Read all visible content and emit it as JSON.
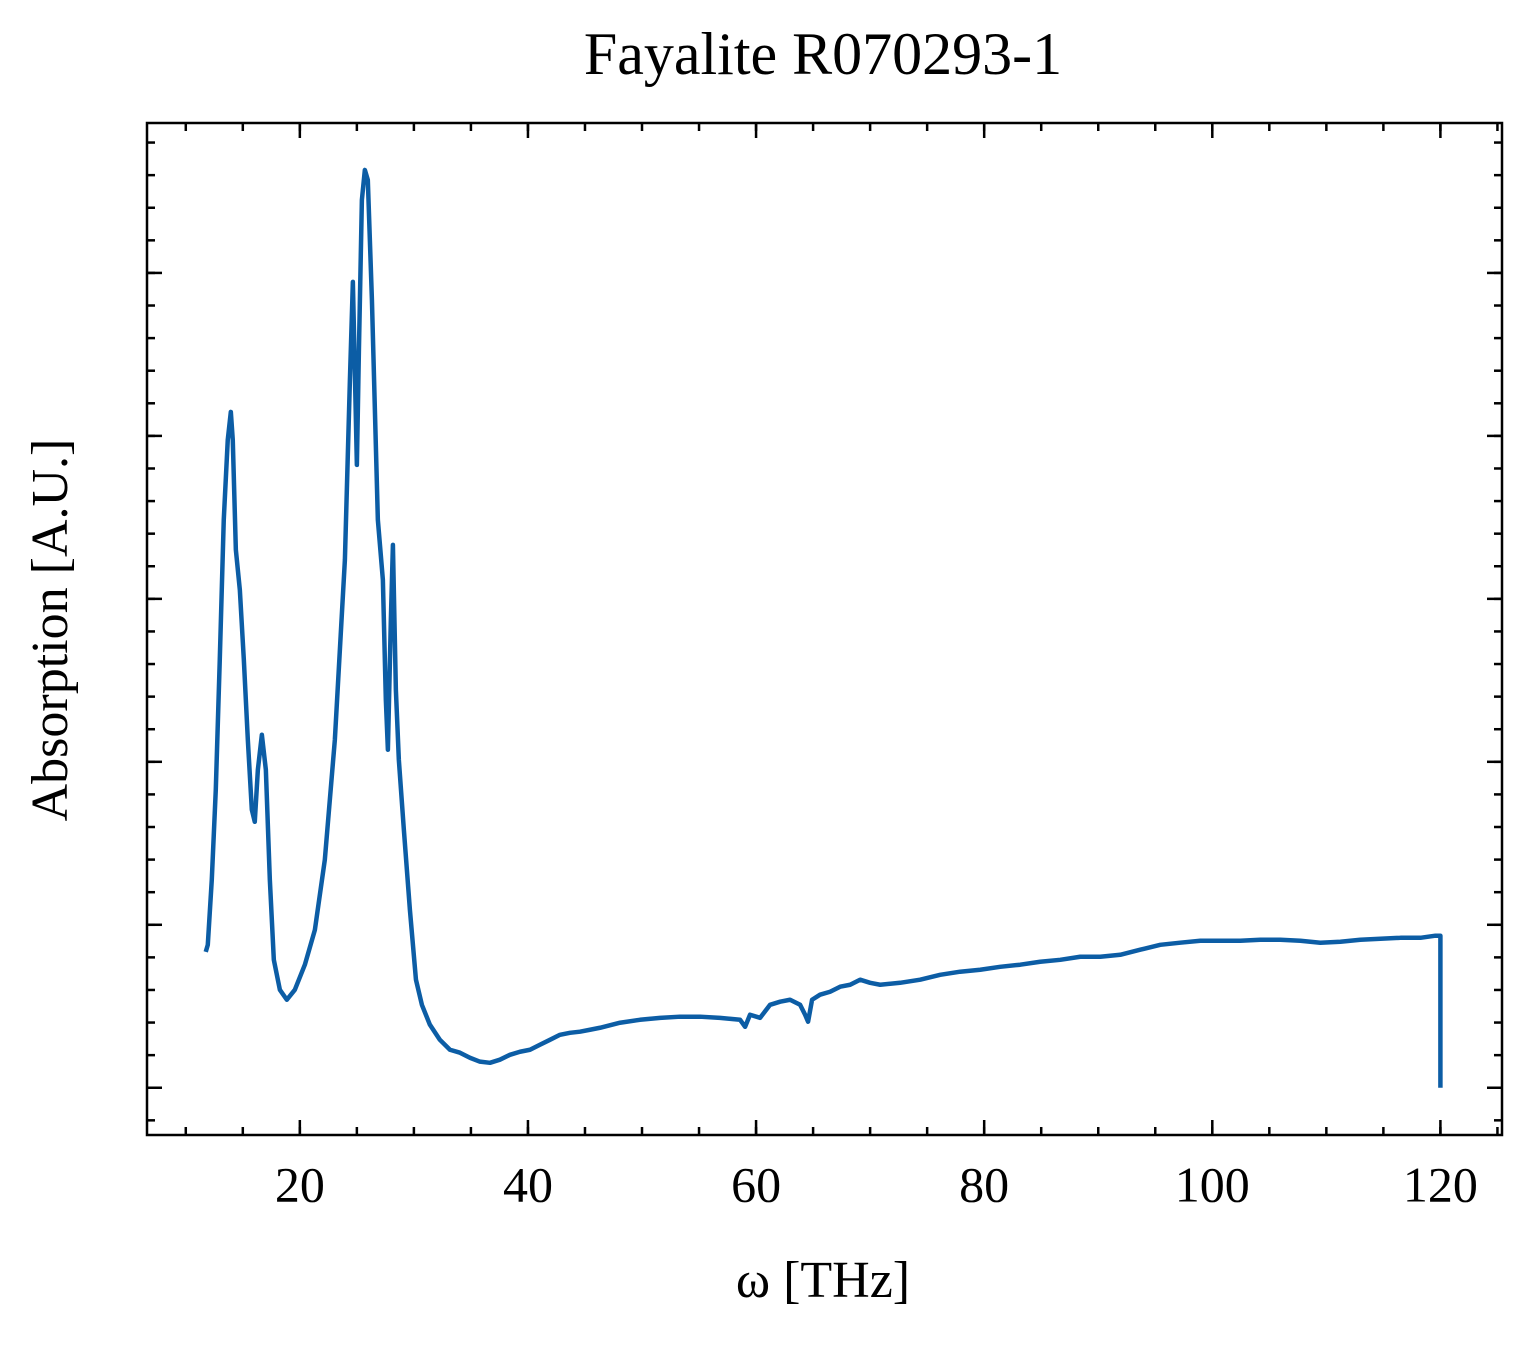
{
  "chart_data": {
    "type": "line",
    "title": "Fayalite R070293-1",
    "x_label": "ω [THz]",
    "y_label": "Absorption [A.U.]",
    "xlim": [
      6.6,
      125.4
    ],
    "ylim": [
      -0.29,
      5.92
    ],
    "xticks": [
      20,
      40,
      60,
      80,
      100,
      120
    ],
    "yticks": [
      0,
      1,
      2,
      3,
      4,
      5
    ],
    "series": [
      {
        "color": "#0c5da5",
        "x": [
          11.75,
          11.93,
          12.28,
          12.63,
          12.98,
          13.33,
          13.68,
          13.95,
          14.12,
          14.39,
          14.74,
          15.09,
          15.44,
          15.79,
          16.05,
          16.32,
          16.67,
          17.02,
          17.37,
          17.72,
          18.25,
          18.86,
          19.56,
          20.44,
          21.32,
          22.19,
          23.07,
          23.95,
          24.39,
          24.65,
          24.82,
          25.0,
          25.18,
          25.44,
          25.7,
          25.96,
          26.32,
          26.84,
          27.28,
          27.54,
          27.72,
          27.98,
          28.16,
          28.42,
          28.68,
          29.12,
          29.65,
          30.18,
          30.7,
          31.4,
          32.28,
          33.16,
          34.04,
          34.91,
          35.79,
          36.67,
          37.54,
          38.42,
          39.3,
          40.18,
          41.05,
          41.93,
          42.81,
          43.68,
          44.56,
          45.44,
          46.32,
          48.07,
          49.82,
          51.58,
          53.33,
          55.09,
          56.84,
          58.6,
          59.04,
          59.47,
          60.35,
          61.23,
          62.11,
          62.98,
          63.86,
          64.3,
          64.56,
          64.91,
          65.61,
          66.49,
          67.37,
          68.25,
          69.12,
          70.0,
          70.88,
          72.63,
          74.39,
          76.14,
          77.89,
          79.65,
          81.4,
          83.16,
          84.91,
          86.67,
          88.42,
          90.18,
          91.93,
          93.68,
          95.44,
          97.19,
          98.95,
          100.7,
          102.46,
          104.21,
          105.96,
          107.72,
          109.47,
          111.23,
          112.98,
          114.74,
          116.49,
          118.25,
          119.56,
          120.0,
          120.0
        ],
        "values": [
          0.834,
          0.877,
          1.276,
          1.828,
          2.626,
          3.485,
          3.975,
          4.147,
          3.975,
          3.301,
          3.055,
          2.626,
          2.135,
          1.706,
          1.632,
          1.951,
          2.166,
          1.951,
          1.276,
          0.785,
          0.601,
          0.54,
          0.601,
          0.755,
          0.969,
          1.399,
          2.135,
          3.239,
          4.344,
          4.945,
          4.405,
          3.822,
          4.528,
          5.448,
          5.632,
          5.571,
          4.834,
          3.485,
          3.117,
          2.38,
          2.074,
          2.871,
          3.331,
          2.442,
          2.012,
          1.583,
          1.092,
          0.663,
          0.509,
          0.387,
          0.294,
          0.233,
          0.215,
          0.184,
          0.16,
          0.153,
          0.172,
          0.202,
          0.221,
          0.233,
          0.264,
          0.294,
          0.325,
          0.337,
          0.344,
          0.356,
          0.368,
          0.399,
          0.417,
          0.429,
          0.436,
          0.436,
          0.429,
          0.417,
          0.374,
          0.448,
          0.429,
          0.509,
          0.528,
          0.54,
          0.509,
          0.448,
          0.405,
          0.54,
          0.571,
          0.589,
          0.62,
          0.632,
          0.663,
          0.644,
          0.632,
          0.644,
          0.663,
          0.693,
          0.712,
          0.724,
          0.742,
          0.755,
          0.773,
          0.785,
          0.804,
          0.804,
          0.816,
          0.847,
          0.877,
          0.89,
          0.902,
          0.902,
          0.902,
          0.908,
          0.908,
          0.902,
          0.89,
          0.896,
          0.908,
          0.914,
          0.92,
          0.92,
          0.933,
          0.933,
          0
        ]
      }
    ]
  }
}
